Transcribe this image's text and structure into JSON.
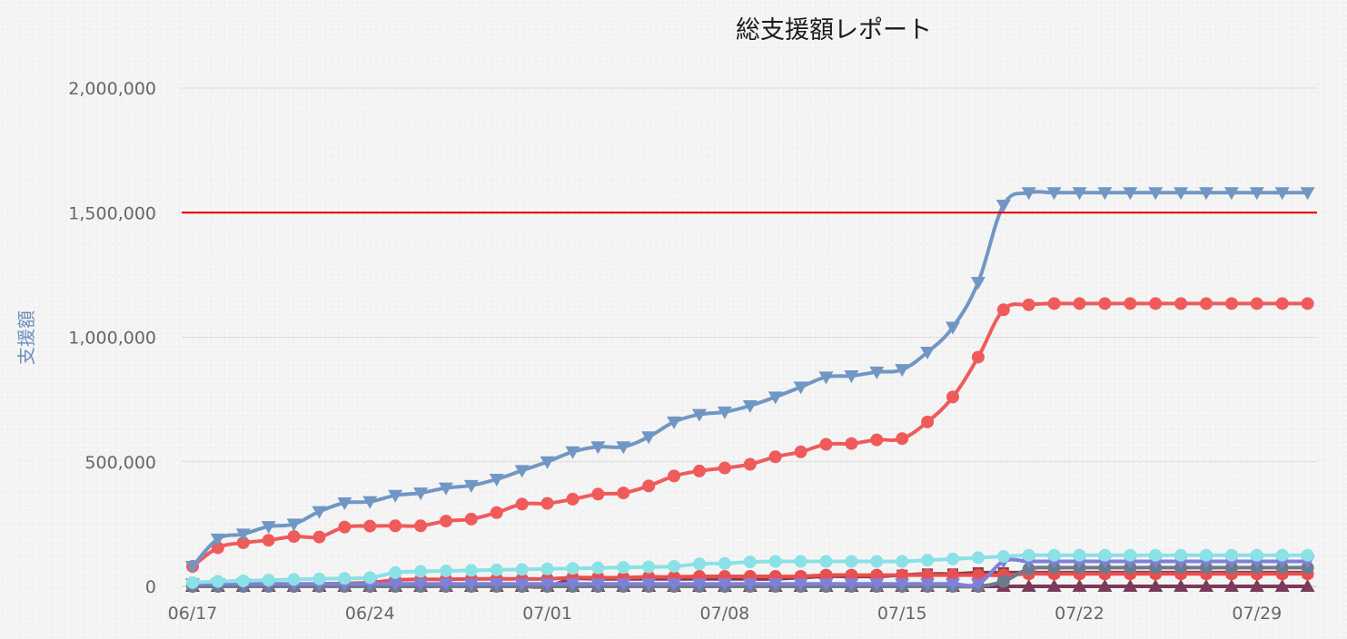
{
  "chart_data": {
    "type": "line",
    "title": "総支援額レポート",
    "ylabel": "支援額",
    "ylim": [
      0,
      2000000
    ],
    "yticks": [
      0,
      500000,
      1000000,
      1500000,
      2000000
    ],
    "ytick_labels": [
      "0",
      "500,000",
      "1,000,000",
      "1,500,000",
      "2,000,000"
    ],
    "xticks": [
      0,
      7,
      14,
      21,
      28,
      35,
      42
    ],
    "xtick_labels": [
      "06/17",
      "06/24",
      "07/01",
      "07/08",
      "07/15",
      "07/22",
      "07/29"
    ],
    "grid": true,
    "reference_line": {
      "value": 1500000,
      "color": "#e00000"
    },
    "series": [
      {
        "color": "#7097c4",
        "marker": "triangle-down",
        "values": [
          80000,
          190000,
          210000,
          240000,
          250000,
          300000,
          335000,
          340000,
          365000,
          375000,
          395000,
          405000,
          430000,
          465000,
          500000,
          540000,
          560000,
          560000,
          600000,
          660000,
          690000,
          700000,
          725000,
          760000,
          800000,
          840000,
          845000,
          860000,
          870000,
          940000,
          1040000,
          1220000,
          1530000,
          1580000,
          1580000,
          1580000,
          1580000,
          1580000,
          1580000,
          1580000,
          1580000,
          1580000,
          1580000,
          1580000,
          1580000
        ]
      },
      {
        "color": "#ef5b5b",
        "marker": "circle",
        "values": [
          80000,
          155000,
          175000,
          185000,
          200000,
          198000,
          238000,
          242000,
          243000,
          243000,
          262000,
          270000,
          296000,
          330000,
          333000,
          350000,
          370000,
          375000,
          403000,
          443000,
          463000,
          475000,
          490000,
          520000,
          540000,
          570000,
          573000,
          588000,
          593000,
          660000,
          760000,
          920000,
          1110000,
          1130000,
          1135000,
          1135000,
          1135000,
          1135000,
          1135000,
          1135000,
          1135000,
          1135000,
          1135000,
          1135000,
          1135000
        ]
      },
      {
        "color": "#8ae1e6",
        "marker": "circle",
        "values": [
          15000,
          20000,
          22000,
          25000,
          28000,
          30000,
          32000,
          35000,
          55000,
          60000,
          62000,
          64000,
          66000,
          68000,
          70000,
          72000,
          74000,
          76000,
          78000,
          80000,
          90000,
          92000,
          98000,
          100000,
          100000,
          100000,
          100000,
          100000,
          100000,
          105000,
          110000,
          115000,
          120000,
          125000,
          125000,
          125000,
          125000,
          125000,
          125000,
          125000,
          125000,
          125000,
          125000,
          125000,
          125000
        ]
      },
      {
        "color": "#8080d8",
        "marker": "triangle-down",
        "values": [
          10000,
          10000,
          10000,
          10000,
          10000,
          10000,
          10000,
          10000,
          10000,
          10000,
          10000,
          10000,
          10000,
          10000,
          10000,
          10000,
          10000,
          10000,
          10000,
          10000,
          10000,
          10000,
          10000,
          10000,
          10000,
          10000,
          10000,
          10000,
          10000,
          10000,
          10000,
          10000,
          100000,
          100000,
          100000,
          100000,
          100000,
          100000,
          100000,
          100000,
          100000,
          100000,
          100000,
          100000,
          100000
        ]
      },
      {
        "color": "#6c7b8c",
        "marker": "circle",
        "values": [
          0,
          0,
          0,
          0,
          0,
          0,
          0,
          0,
          0,
          0,
          0,
          0,
          0,
          0,
          0,
          0,
          0,
          0,
          0,
          0,
          0,
          0,
          0,
          0,
          0,
          0,
          0,
          0,
          0,
          0,
          0,
          0,
          20000,
          70000,
          75000,
          75000,
          75000,
          75000,
          75000,
          75000,
          75000,
          75000,
          75000,
          75000,
          75000
        ]
      },
      {
        "color": "#e85050",
        "marker": "circle",
        "values": [
          5000,
          5000,
          5000,
          5000,
          5000,
          10000,
          12000,
          15000,
          25000,
          28000,
          28000,
          30000,
          30000,
          30000,
          30000,
          35000,
          35000,
          35000,
          38000,
          38000,
          40000,
          40000,
          40000,
          40000,
          40000,
          45000,
          45000,
          45000,
          45000,
          45000,
          45000,
          45000,
          45000,
          50000,
          50000,
          50000,
          50000,
          50000,
          50000,
          50000,
          50000,
          50000,
          50000,
          50000,
          50000
        ]
      },
      {
        "color": "#8b3a4a",
        "marker": "square",
        "values": [
          0,
          0,
          0,
          0,
          0,
          0,
          0,
          0,
          0,
          0,
          0,
          0,
          0,
          0,
          0,
          30000,
          30000,
          30000,
          30000,
          30000,
          30000,
          30000,
          30000,
          30000,
          35000,
          40000,
          40000,
          40000,
          45000,
          50000,
          50000,
          55000,
          55000,
          55000,
          55000,
          55000,
          55000,
          55000,
          55000,
          55000,
          55000,
          55000,
          55000,
          55000,
          55000
        ]
      },
      {
        "color": "#7a3a5a",
        "marker": "triangle-up",
        "values": [
          0,
          0,
          0,
          0,
          0,
          0,
          0,
          0,
          0,
          0,
          0,
          0,
          0,
          0,
          0,
          0,
          0,
          0,
          0,
          0,
          0,
          0,
          0,
          0,
          0,
          0,
          0,
          0,
          0,
          0,
          0,
          0,
          0,
          0,
          0,
          0,
          0,
          0,
          0,
          0,
          0,
          0,
          0,
          0,
          0
        ]
      }
    ]
  }
}
